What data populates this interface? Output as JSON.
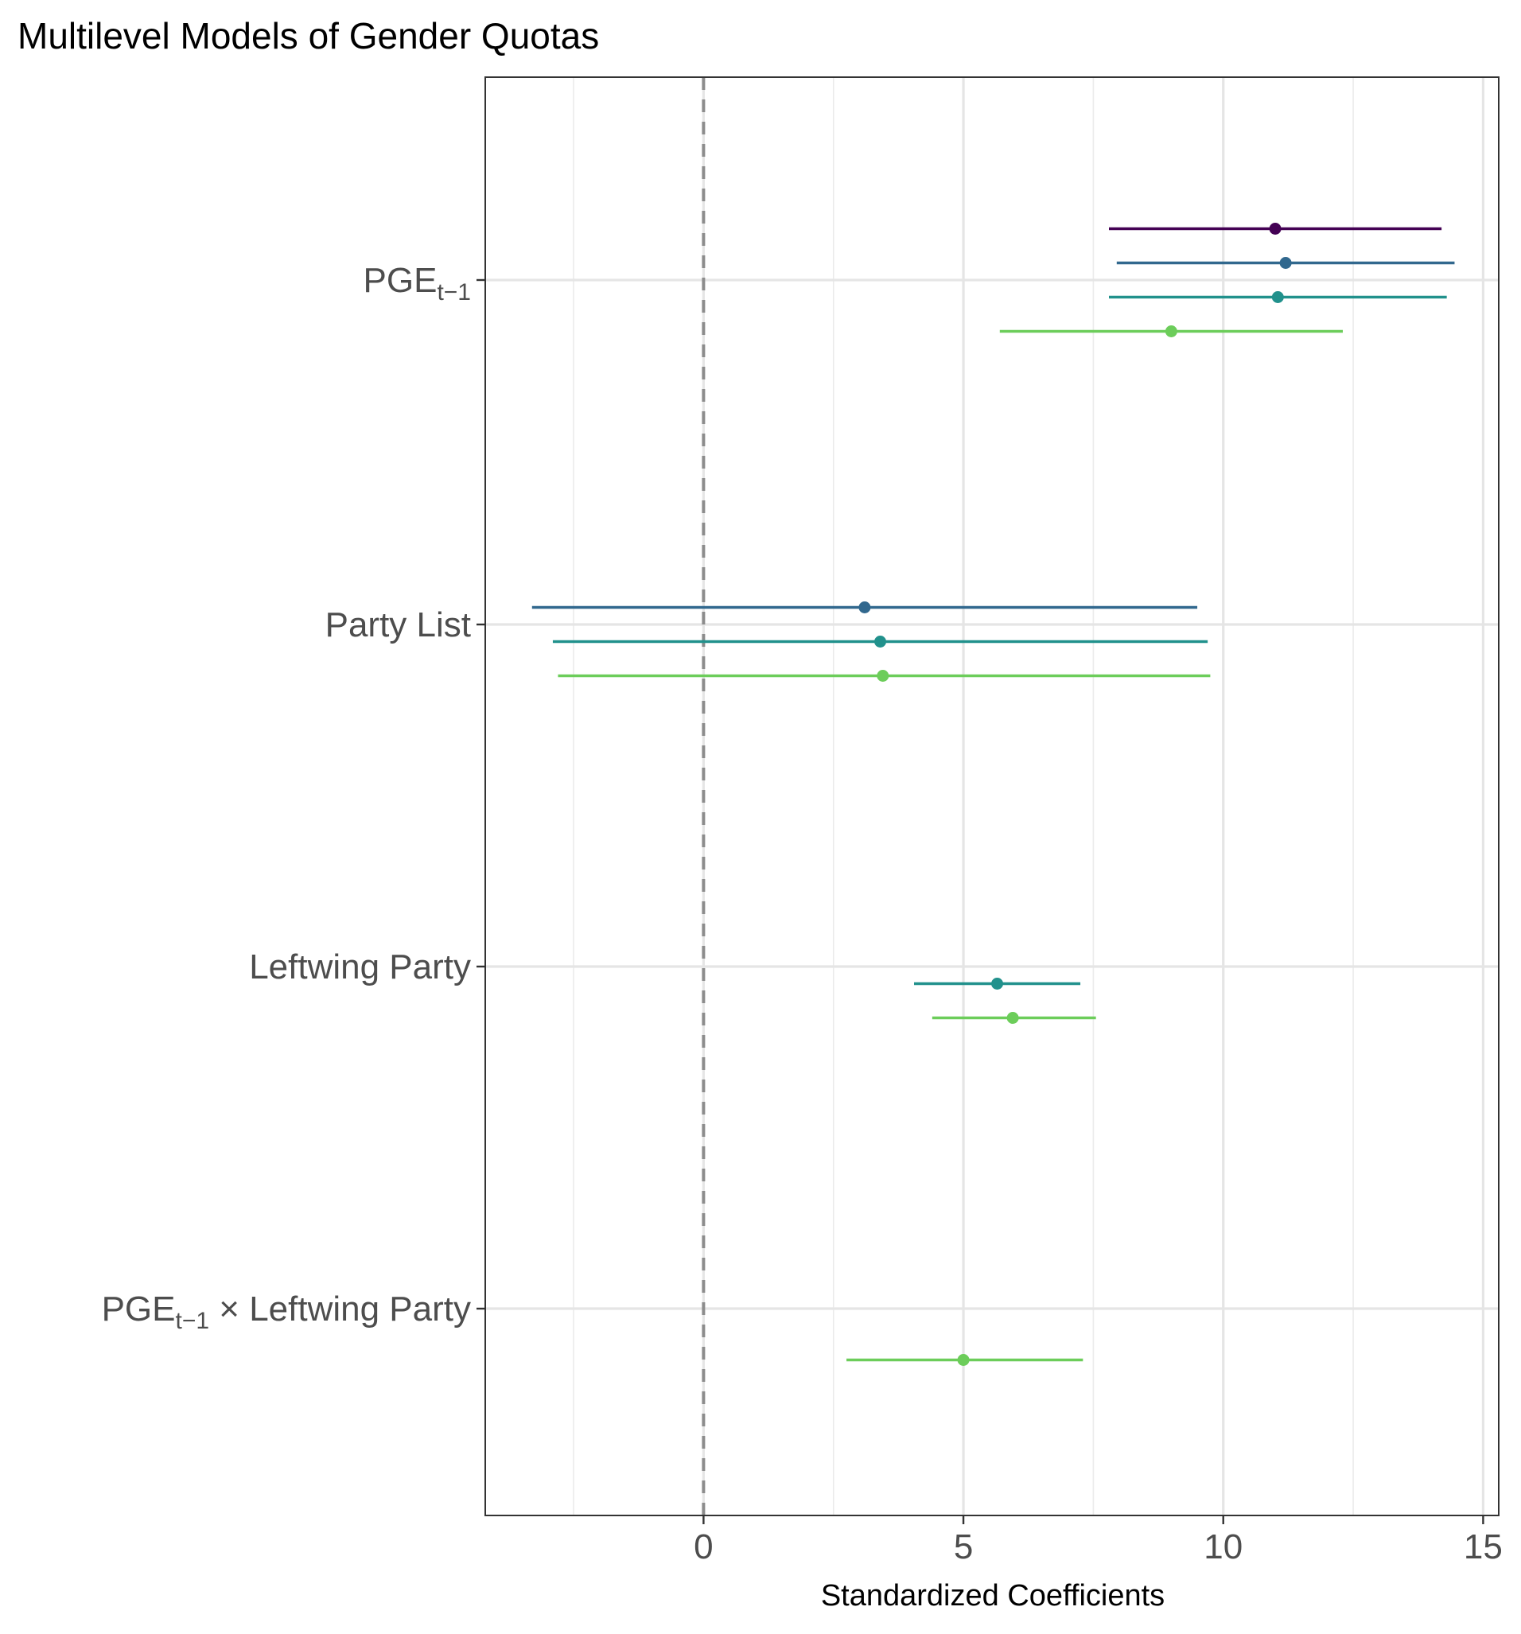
{
  "chart_data": {
    "type": "scatter",
    "title": "Multilevel Models of Gender Quotas",
    "xlabel": "Standardized Coefficients",
    "ylabel": "",
    "xlim": [
      -4.2,
      15.3
    ],
    "xticks": [
      0,
      5,
      10,
      15
    ],
    "xticks_minor": [
      -2.5,
      2.5,
      7.5,
      12.5
    ],
    "reference_line": 0,
    "grid": true,
    "legend": "none",
    "categories": [
      {
        "label": "PGE",
        "subscript": "t−1",
        "suffix": ""
      },
      {
        "label": "Party List",
        "subscript": "",
        "suffix": ""
      },
      {
        "label": "Leftwing Party",
        "subscript": "",
        "suffix": ""
      },
      {
        "label": "PGE",
        "subscript": "t−1",
        "suffix": " × Leftwing Party"
      }
    ],
    "series": [
      {
        "color": "#440154",
        "points": [
          {
            "category": 0,
            "estimate": 11.0,
            "low": 7.8,
            "high": 14.2
          }
        ]
      },
      {
        "color": "#31688e",
        "points": [
          {
            "category": 0,
            "estimate": 11.2,
            "low": 7.95,
            "high": 14.45
          },
          {
            "category": 1,
            "estimate": 3.1,
            "low": -3.3,
            "high": 9.5
          }
        ]
      },
      {
        "color": "#21918c",
        "points": [
          {
            "category": 0,
            "estimate": 11.05,
            "low": 7.8,
            "high": 14.3
          },
          {
            "category": 1,
            "estimate": 3.4,
            "low": -2.9,
            "high": 9.7
          },
          {
            "category": 2,
            "estimate": 5.65,
            "low": 4.05,
            "high": 7.25
          }
        ]
      },
      {
        "color": "#6ccd5a",
        "points": [
          {
            "category": 0,
            "estimate": 9.0,
            "low": 5.7,
            "high": 12.3
          },
          {
            "category": 1,
            "estimate": 3.45,
            "low": -2.8,
            "high": 9.75
          },
          {
            "category": 2,
            "estimate": 5.95,
            "low": 4.4,
            "high": 7.55
          },
          {
            "category": 3,
            "estimate": 5.0,
            "low": 2.75,
            "high": 7.3
          }
        ]
      }
    ]
  }
}
